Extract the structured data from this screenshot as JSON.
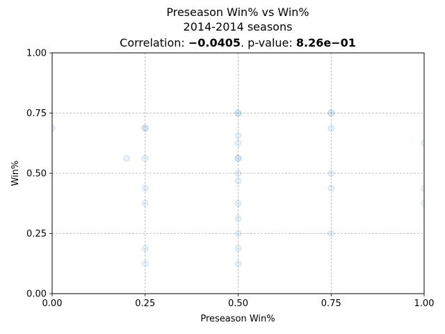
{
  "chart_data": {
    "type": "scatter",
    "title_lines": [
      "Preseason Win% vs Win%",
      "2014-2014 seasons"
    ],
    "correlation": {
      "prefix": "Correlation: ",
      "value": "−0.0405",
      "separator": ". p-value: ",
      "p_value": "8.26e−01"
    },
    "xlabel": "Preseason Win%",
    "ylabel": "Win%",
    "xlim": [
      0,
      1
    ],
    "ylim": [
      0,
      1
    ],
    "xticks": [
      0,
      0.25,
      0.5,
      0.75,
      1
    ],
    "yticks": [
      0,
      0.25,
      0.5,
      0.75,
      1
    ],
    "xtick_labels": [
      "0.00",
      "0.25",
      "0.50",
      "0.75",
      "1.00"
    ],
    "ytick_labels": [
      "0.00",
      "0.25",
      "0.50",
      "0.75",
      "1.00"
    ],
    "grid": true,
    "point_color": "#1f77b4",
    "points": [
      {
        "x": 0,
        "y": 0.6875
      },
      {
        "x": 0.2,
        "y": 0.5625
      },
      {
        "x": 0.25,
        "y": 0.6875
      },
      {
        "x": 0.25,
        "y": 0.6875
      },
      {
        "x": 0.25,
        "y": 0.5625
      },
      {
        "x": 0.25,
        "y": 0.4375
      },
      {
        "x": 0.25,
        "y": 0.375
      },
      {
        "x": 0.25,
        "y": 0.1875
      },
      {
        "x": 0.25,
        "y": 0.125
      },
      {
        "x": 0.5,
        "y": 0.75
      },
      {
        "x": 0.5,
        "y": 0.75
      },
      {
        "x": 0.5,
        "y": 0.65625
      },
      {
        "x": 0.5,
        "y": 0.625
      },
      {
        "x": 0.5,
        "y": 0.5625
      },
      {
        "x": 0.5,
        "y": 0.5625
      },
      {
        "x": 0.5,
        "y": 0.5
      },
      {
        "x": 0.5,
        "y": 0.46875
      },
      {
        "x": 0.5,
        "y": 0.375
      },
      {
        "x": 0.5,
        "y": 0.3125
      },
      {
        "x": 0.5,
        "y": 0.25
      },
      {
        "x": 0.5,
        "y": 0.1875
      },
      {
        "x": 0.5,
        "y": 0.125
      },
      {
        "x": 0.75,
        "y": 0.75
      },
      {
        "x": 0.75,
        "y": 0.75
      },
      {
        "x": 0.75,
        "y": 0.6875
      },
      {
        "x": 0.75,
        "y": 0.5
      },
      {
        "x": 0.75,
        "y": 0.4375
      },
      {
        "x": 0.75,
        "y": 0.25
      },
      {
        "x": 1,
        "y": 0.625
      },
      {
        "x": 1,
        "y": 0.4375
      },
      {
        "x": 1,
        "y": 0.375
      }
    ]
  }
}
